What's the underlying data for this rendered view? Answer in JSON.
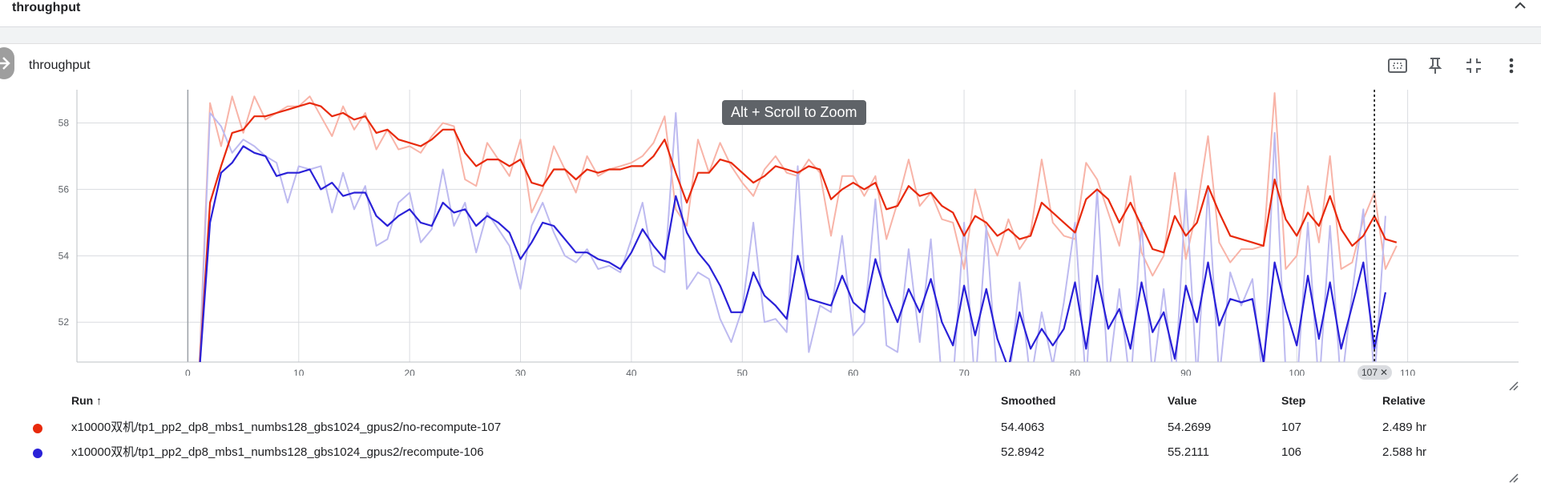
{
  "section": {
    "title": "throughput"
  },
  "card": {
    "title": "throughput"
  },
  "tooltip": "Alt + Scroll to Zoom",
  "step_chip": "107",
  "colors": {
    "red": "#e8290b",
    "red_raw": "#f8b4a8",
    "blue": "#2a21d8",
    "blue_raw": "#bdbaf0",
    "grid": "#dadce0",
    "axis_text": "#5f6368"
  },
  "table": {
    "headers": {
      "run": "Run ↑",
      "smoothed": "Smoothed",
      "value": "Value",
      "step": "Step",
      "relative": "Relative"
    },
    "rows": [
      {
        "color": "#e8290b",
        "run": "x10000双机/tp1_pp2_dp8_mbs1_numbs128_gbs1024_gpus2/no-recompute-107",
        "smoothed": "54.4063",
        "value": "54.2699",
        "step": "107",
        "relative": "2.489 hr"
      },
      {
        "color": "#2a21d8",
        "run": "x10000双机/tp1_pp2_dp8_mbs1_numbs128_gbs1024_gpus2/recompute-106",
        "smoothed": "52.8942",
        "value": "55.2111",
        "step": "106",
        "relative": "2.588 hr"
      }
    ]
  },
  "chart_data": {
    "type": "line",
    "title": "throughput",
    "xlabel": "",
    "ylabel": "",
    "xlim": [
      -10,
      120
    ],
    "ylim": [
      50.8,
      59.0
    ],
    "x_ticks": [
      0,
      10,
      20,
      30,
      40,
      50,
      60,
      70,
      80,
      90,
      100,
      110
    ],
    "y_ticks": [
      52,
      54,
      56,
      58
    ],
    "grid": true,
    "cursor_step": 107,
    "series": [
      {
        "name": "x10000双机/tp1_pp2_dp8_mbs1_numbs128_gbs1024_gpus2/no-recompute-107",
        "color": "#e8290b",
        "raw_color": "#f8b4a8",
        "start_step": 1,
        "smoothed": [
          50.3,
          55.6,
          56.7,
          57.7,
          57.8,
          58.2,
          58.2,
          58.3,
          58.4,
          58.5,
          58.6,
          58.5,
          58.2,
          58.3,
          58.1,
          58.2,
          57.7,
          57.8,
          57.5,
          57.4,
          57.3,
          57.5,
          57.8,
          57.8,
          57.1,
          56.7,
          56.9,
          56.9,
          56.7,
          56.9,
          56.2,
          56.1,
          56.6,
          56.6,
          56.3,
          56.6,
          56.5,
          56.6,
          56.6,
          56.7,
          56.7,
          57.0,
          57.5,
          56.5,
          55.6,
          56.5,
          56.5,
          56.9,
          56.8,
          56.5,
          56.2,
          56.4,
          56.7,
          56.6,
          56.5,
          56.7,
          56.6,
          55.7,
          56.0,
          56.2,
          56.0,
          56.2,
          55.4,
          55.5,
          56.1,
          55.8,
          55.9,
          55.5,
          55.3,
          54.6,
          55.2,
          55.0,
          54.6,
          54.8,
          54.5,
          54.6,
          55.6,
          55.3,
          55.0,
          54.7,
          55.7,
          56.0,
          55.7,
          55.0,
          55.6,
          54.9,
          54.2,
          54.1,
          55.2,
          54.6,
          55.0,
          56.1,
          55.3,
          54.6,
          54.5,
          54.4,
          54.3,
          56.3,
          55.1,
          54.6,
          55.3,
          54.9,
          55.8,
          54.8,
          54.3,
          54.6,
          55.2,
          54.5,
          54.4
        ],
        "raw": [
          50.4,
          58.6,
          57.3,
          58.8,
          57.7,
          58.8,
          58.1,
          58.3,
          58.5,
          58.5,
          58.8,
          58.2,
          57.6,
          58.5,
          57.8,
          58.3,
          57.2,
          57.8,
          57.2,
          57.3,
          57.1,
          57.6,
          58.0,
          57.9,
          56.3,
          56.1,
          57.4,
          56.9,
          56.4,
          57.5,
          55.3,
          56.0,
          57.3,
          56.6,
          55.9,
          57.0,
          56.4,
          56.6,
          56.7,
          56.8,
          57.0,
          57.4,
          58.2,
          55.4,
          54.9,
          57.5,
          56.5,
          57.4,
          56.7,
          56.2,
          55.8,
          56.6,
          57.0,
          56.5,
          56.4,
          56.9,
          56.5,
          54.6,
          56.4,
          56.4,
          55.8,
          56.4,
          54.5,
          55.6,
          56.9,
          55.5,
          55.9,
          55.1,
          55.0,
          53.6,
          56.0,
          54.8,
          54.0,
          55.1,
          54.2,
          54.7,
          56.9,
          55.0,
          54.6,
          54.5,
          56.8,
          56.3,
          55.3,
          54.3,
          56.4,
          54.1,
          53.4,
          54.0,
          56.5,
          53.9,
          55.4,
          57.6,
          54.4,
          53.8,
          54.2,
          54.2,
          54.3,
          58.9,
          53.6,
          54.0,
          56.1,
          54.4,
          57.0,
          53.6,
          53.8,
          55.1,
          55.9,
          53.6,
          54.3
        ]
      },
      {
        "name": "x10000双机/tp1_pp2_dp8_mbs1_numbs128_gbs1024_gpus2/recompute-106",
        "color": "#2a21d8",
        "raw_color": "#bdbaf0",
        "start_step": 1,
        "smoothed": [
          50.3,
          55.0,
          56.5,
          56.8,
          57.3,
          57.1,
          57.0,
          56.4,
          56.5,
          56.5,
          56.6,
          56.0,
          56.2,
          55.8,
          55.9,
          55.9,
          55.2,
          54.9,
          55.2,
          55.4,
          55.0,
          54.9,
          55.6,
          55.3,
          55.4,
          54.9,
          55.2,
          55.0,
          54.7,
          53.9,
          54.4,
          55.0,
          54.9,
          54.5,
          54.1,
          54.1,
          53.9,
          53.8,
          53.6,
          54.1,
          54.8,
          54.3,
          53.9,
          55.8,
          54.7,
          54.1,
          53.7,
          53.1,
          52.3,
          52.3,
          53.5,
          52.8,
          52.5,
          52.1,
          54.0,
          52.7,
          52.6,
          52.5,
          53.4,
          52.6,
          52.3,
          53.9,
          52.8,
          52.0,
          53.0,
          52.3,
          53.3,
          52.0,
          51.3,
          53.1,
          51.6,
          53.0,
          51.5,
          50.6,
          52.3,
          51.2,
          51.8,
          51.3,
          51.8,
          53.2,
          51.2,
          53.4,
          51.8,
          52.4,
          51.2,
          53.2,
          51.7,
          52.3,
          50.9,
          53.1,
          52.0,
          53.8,
          51.9,
          52.7,
          52.6,
          52.7,
          50.8,
          53.8,
          52.4,
          51.3,
          53.4,
          51.5,
          53.2,
          51.2,
          52.5,
          53.8,
          51.2,
          52.9
        ],
        "raw": [
          50.2,
          58.3,
          57.9,
          57.1,
          57.5,
          57.3,
          57.0,
          56.8,
          55.6,
          56.7,
          56.6,
          56.7,
          55.3,
          56.5,
          55.4,
          56.1,
          54.3,
          54.5,
          55.6,
          55.9,
          54.4,
          54.8,
          56.6,
          54.9,
          55.6,
          54.1,
          55.3,
          54.8,
          54.3,
          53.0,
          54.9,
          55.6,
          54.7,
          54.0,
          53.8,
          54.2,
          53.6,
          53.7,
          53.5,
          54.5,
          55.6,
          53.7,
          53.5,
          58.3,
          53.0,
          53.5,
          53.3,
          52.1,
          51.4,
          52.4,
          55.0,
          52.0,
          52.1,
          51.7,
          56.7,
          51.1,
          52.5,
          52.3,
          54.6,
          51.6,
          52.0,
          55.7,
          51.3,
          51.1,
          54.2,
          51.4,
          54.5,
          50.2,
          50.2,
          55.0,
          50.0,
          54.9,
          50.2,
          50.0,
          53.2,
          50.2,
          52.3,
          50.7,
          52.6,
          55.0,
          50.1,
          56.0,
          50.3,
          53.0,
          50.0,
          55.0,
          50.3,
          53.0,
          50.0,
          56.0,
          50.3,
          56.0,
          50.3,
          53.5,
          52.5,
          53.3,
          50.0,
          57.7,
          50.5,
          50.0,
          55.0,
          50.0,
          54.9,
          50.0,
          52.9,
          55.4,
          50.2,
          55.2
        ]
      }
    ]
  }
}
